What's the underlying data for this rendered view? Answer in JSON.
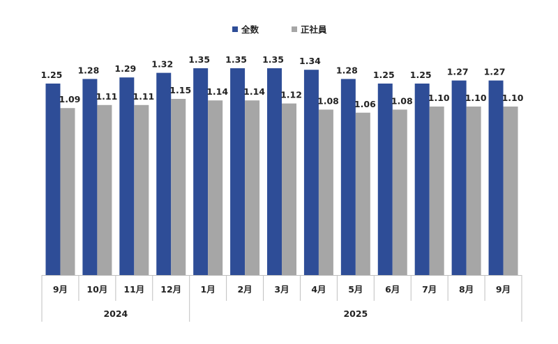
{
  "chart_data": {
    "type": "bar",
    "title": "",
    "xlabel": "",
    "ylabel": "",
    "ylim": [
      0,
      1.45
    ],
    "grid": false,
    "legend_placement": "top-center",
    "categories": [
      "9月",
      "10月",
      "11月",
      "12月",
      "1月",
      "2月",
      "3月",
      "4月",
      "5月",
      "6月",
      "7月",
      "8月",
      "9月"
    ],
    "groups": [
      {
        "label": "2024",
        "count": 4
      },
      {
        "label": "2025",
        "count": 9
      }
    ],
    "series": [
      {
        "name": "全数",
        "color": "#2e4d97",
        "values": [
          1.25,
          1.28,
          1.29,
          1.32,
          1.35,
          1.35,
          1.35,
          1.34,
          1.28,
          1.25,
          1.25,
          1.27,
          1.27
        ],
        "labels": [
          "1.25",
          "1.28",
          "1.29",
          "1.32",
          "1.35",
          "1.35",
          "1.35",
          "1.34",
          "1.28",
          "1.25",
          "1.25",
          "1.27",
          "1.27"
        ]
      },
      {
        "name": "正社員",
        "color": "#a6a6a6",
        "values": [
          1.09,
          1.11,
          1.11,
          1.15,
          1.14,
          1.14,
          1.12,
          1.08,
          1.06,
          1.08,
          1.1,
          1.1,
          1.1
        ],
        "labels": [
          "1.09",
          "1.11",
          "1.11",
          "1.15",
          "1.14",
          "1.14",
          "1.12",
          "1.08",
          "1.06",
          "1.08",
          "1.10",
          "1.10",
          "1.10"
        ]
      }
    ]
  }
}
